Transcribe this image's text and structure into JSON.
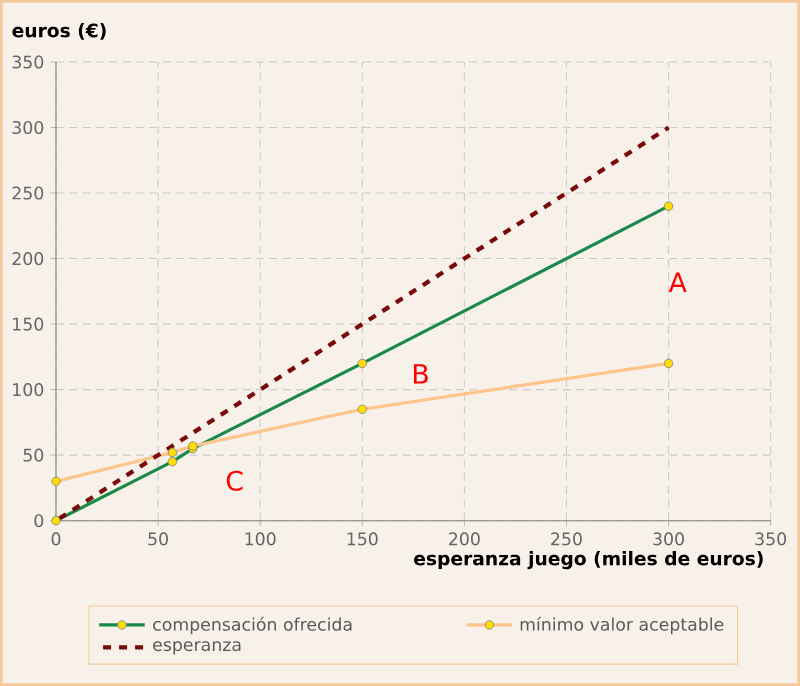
{
  "chart_data": {
    "type": "line",
    "xlabel": "esperanza juego (miles de euros)",
    "ylabel": "euros (€)",
    "xlim": [
      0,
      350
    ],
    "ylim": [
      0,
      350
    ],
    "xticks": [
      0,
      50,
      100,
      150,
      200,
      250,
      300,
      350
    ],
    "yticks": [
      0,
      50,
      100,
      150,
      200,
      250,
      300,
      350
    ],
    "grid": true,
    "legend": "bottom",
    "series": [
      {
        "name": "compensación ofrecida",
        "color": "#1a8a4a",
        "marker": "circle",
        "line_style": "solid",
        "x": [
          0,
          57,
          67,
          150,
          300
        ],
        "values": [
          0,
          45,
          55,
          120,
          240
        ]
      },
      {
        "name": "mínimo valor aceptable",
        "color": "#ffc48a",
        "marker": "circle",
        "line_style": "solid",
        "x": [
          0,
          57,
          67,
          150,
          300
        ],
        "values": [
          30,
          52,
          57,
          85,
          120
        ]
      },
      {
        "name": "esperanza",
        "color": "#7a0a0a",
        "marker": "none",
        "line_style": "dashed",
        "x": [
          0,
          300
        ],
        "values": [
          0,
          300
        ]
      }
    ],
    "annotations": [
      "A",
      "B",
      "C"
    ]
  }
}
